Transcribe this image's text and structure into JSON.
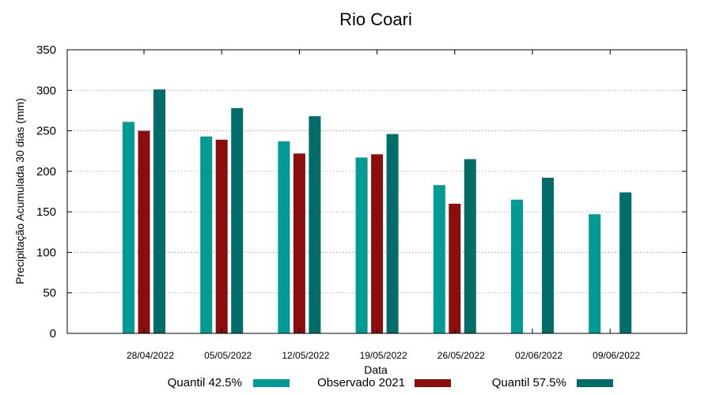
{
  "chart_data": {
    "type": "bar",
    "title": "Rio Coari",
    "xlabel": "Data",
    "ylabel": "Precipitação Acumulada 30 dias (mm)",
    "ylim": [
      0,
      350
    ],
    "yticks": [
      0,
      50,
      100,
      150,
      200,
      250,
      300,
      350
    ],
    "grid": true,
    "legend_position": "bottom",
    "categories": [
      "28/04/2022",
      "05/05/2022",
      "12/05/2022",
      "19/05/2022",
      "26/05/2022",
      "02/06/2022",
      "09/06/2022"
    ],
    "series": [
      {
        "name": "Quantil 42.5%",
        "color": "#009b95",
        "values": [
          261,
          243,
          237,
          217,
          183,
          165,
          147
        ]
      },
      {
        "name": "Observado 2021",
        "color": "#8b0e0e",
        "values": [
          250,
          239,
          222,
          221,
          160,
          null,
          null
        ]
      },
      {
        "name": "Quantil 57.5%",
        "color": "#006d69",
        "values": [
          301,
          278,
          268,
          246,
          215,
          192,
          174
        ]
      }
    ]
  }
}
